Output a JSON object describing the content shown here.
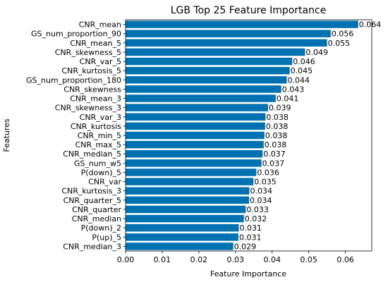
{
  "chart_data": {
    "type": "bar",
    "orientation": "horizontal",
    "title": "LGB Top 25 Feature Importance",
    "xlabel": "Feature Importance",
    "ylabel": "Features",
    "xlim": [
      0,
      0.0672
    ],
    "xticks": [
      "0.00",
      "0.01",
      "0.02",
      "0.03",
      "0.04",
      "0.05",
      "0.06"
    ],
    "grid": false,
    "bar_color": "#0072b2",
    "categories": [
      "CNR_mean",
      "GS_num_proportion_90",
      "CNR_mean_5",
      "CNR_skewness_5",
      "CNR_var_5",
      "CNR_kurtosis_5",
      "GS_num_proportion_180",
      "CNR_skewness",
      "CNR_mean_3",
      "CNR_skewness_3",
      "CNR_var_3",
      "CNR_kurtosis",
      "CNR_min_5",
      "CNR_max_5",
      "CNR_median_5",
      "GS_num_w5",
      "P(down)_5",
      "CNR_var",
      "CNR_kurtosis_3",
      "CNR_quarter_5",
      "CNR_quarter",
      "CNR_median",
      "P(down)_2",
      "P(up)_5",
      "CNR_median_3"
    ],
    "values": [
      0.0635,
      0.056,
      0.055,
      0.049,
      0.0455,
      0.0448,
      0.044,
      0.0425,
      0.041,
      0.0389,
      0.0382,
      0.0381,
      0.0379,
      0.0377,
      0.0374,
      0.0371,
      0.0357,
      0.0349,
      0.0338,
      0.0337,
      0.0328,
      0.0323,
      0.0309,
      0.0308,
      0.0294
    ],
    "value_labels": [
      "0.064",
      "0.056",
      "0.055",
      "0.049",
      "0.046",
      "0.045",
      "0.044",
      "0.043",
      "0.041",
      "0.039",
      "0.038",
      "0.038",
      "0.038",
      "0.038",
      "0.037",
      "0.037",
      "0.036",
      "0.035",
      "0.034",
      "0.034",
      "0.033",
      "0.032",
      "0.031",
      "0.031",
      "0.029"
    ]
  }
}
